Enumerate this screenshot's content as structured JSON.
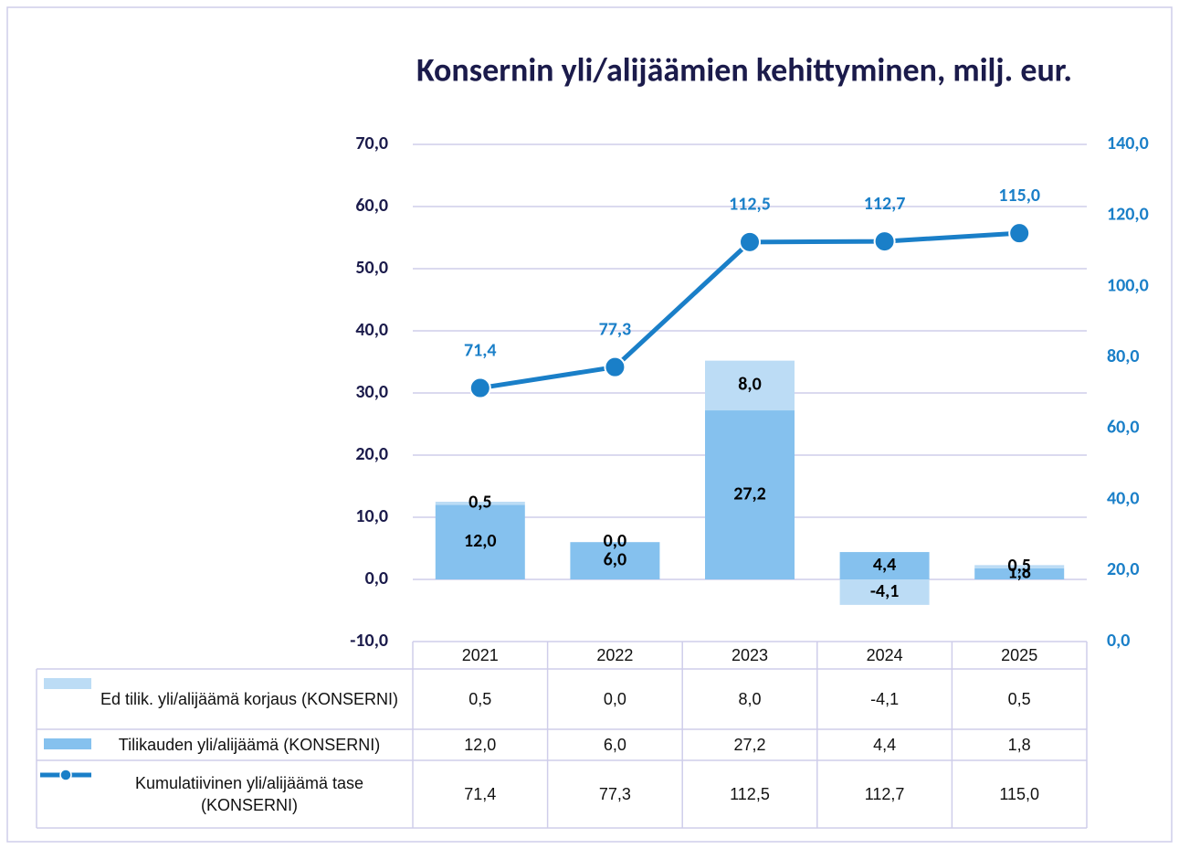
{
  "chart_data": {
    "type": "bar",
    "title": "Konsernin yli/alijäämien kehittyminen, milj. eur.",
    "categories": [
      "2021",
      "2022",
      "2023",
      "2024",
      "2025"
    ],
    "series": [
      {
        "name": "Ed tilik. yli/alijäämä korjaus (KONSERNI)",
        "type": "bar",
        "color": "#bcdcf5",
        "values": [
          0.5,
          0.0,
          8.0,
          -4.1,
          0.5
        ],
        "value_labels": [
          "0,5",
          "0,0",
          "8,0",
          "-4,1",
          "0,5"
        ]
      },
      {
        "name": "Tilikauden yli/alijäämä (KONSERNI)",
        "type": "bar",
        "color": "#85c1ee",
        "values": [
          12.0,
          6.0,
          27.2,
          4.4,
          1.8
        ],
        "value_labels": [
          "12,0",
          "6,0",
          "27,2",
          "4,4",
          "1,8"
        ]
      },
      {
        "name": "Kumulatiivinen yli/alijäämä tase (KONSERNI)",
        "type": "line",
        "axis": "y2",
        "color": "#1a7fc8",
        "values": [
          71.4,
          77.3,
          112.5,
          112.7,
          115.0
        ],
        "value_labels": [
          "71,4",
          "77,3",
          "112,5",
          "112,7",
          "115,0"
        ]
      }
    ],
    "ylim": [
      -10,
      70
    ],
    "yticks": [
      {
        "value": -10,
        "label": "-10,0"
      },
      {
        "value": 0,
        "label": "0,0"
      },
      {
        "value": 10,
        "label": "10,0"
      },
      {
        "value": 20,
        "label": "20,0"
      },
      {
        "value": 30,
        "label": "30,0"
      },
      {
        "value": 40,
        "label": "40,0"
      },
      {
        "value": 50,
        "label": "50,0"
      },
      {
        "value": 60,
        "label": "60,0"
      },
      {
        "value": 70,
        "label": "70,0"
      }
    ],
    "y2lim": [
      0,
      140
    ],
    "y2ticks": [
      {
        "value": 0,
        "label": "0,0"
      },
      {
        "value": 20,
        "label": "20,0"
      },
      {
        "value": 40,
        "label": "40,0"
      },
      {
        "value": 60,
        "label": "60,0"
      },
      {
        "value": 80,
        "label": "80,0"
      },
      {
        "value": 100,
        "label": "100,0"
      },
      {
        "value": 120,
        "label": "120,0"
      },
      {
        "value": 140,
        "label": "140,0"
      }
    ],
    "grid": true
  }
}
